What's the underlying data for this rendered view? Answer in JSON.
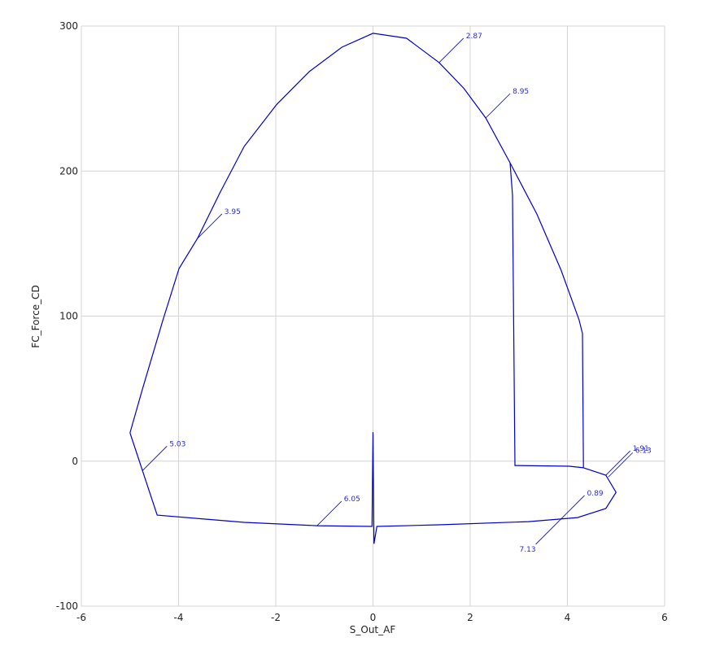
{
  "chart_data": {
    "type": "line",
    "x_label": "S_Out_AF",
    "y_label": "FC_Force_CD",
    "xlim": [
      -6,
      6
    ],
    "ylim": [
      -100,
      300
    ],
    "xticks": [
      -6,
      -4,
      -2,
      0,
      2,
      4,
      6
    ],
    "yticks": [
      -100,
      0,
      100,
      200,
      300
    ],
    "grid": true,
    "series": [
      {
        "color": "#0000c8",
        "x": [
          -5.0,
          -4.74,
          -4.33,
          -3.99,
          -3.61,
          -3.15,
          -2.65,
          -1.98,
          -1.31,
          -0.64,
          0.0,
          0.69,
          1.36,
          1.87,
          2.32,
          2.82,
          3.37,
          3.87,
          4.24,
          4.31,
          4.33,
          4.79,
          5.0,
          4.79,
          4.21,
          3.2,
          1.36,
          0.08,
          0.02,
          0.0,
          -0.02,
          -1.15,
          -2.65,
          -4.44,
          -5.0
        ],
        "y": [
          19.5,
          50,
          96.4,
          132.8,
          153.6,
          185,
          217,
          246,
          268.6,
          285.4,
          295,
          291.6,
          274.8,
          257,
          236.6,
          205.7,
          170.4,
          131.7,
          97.5,
          88,
          -4.6,
          -9.7,
          -21.5,
          -32.7,
          -38.9,
          -41.7,
          -43.9,
          -45,
          -57,
          20,
          -45,
          -44.5,
          -42.2,
          -37.2,
          19.5
        ]
      },
      {
        "color": "#0000c8",
        "x": [
          2.82,
          2.87,
          2.92,
          4.04,
          4.33
        ],
        "y": [
          205.7,
          183.3,
          -3,
          -3.5,
          -4.6
        ]
      }
    ],
    "annotations": [
      {
        "text": "2.87",
        "x": 1.36,
        "y": 274.8
      },
      {
        "text": "8.95",
        "x": 2.32,
        "y": 236.6
      },
      {
        "text": "3.95",
        "x": -3.61,
        "y": 153.6
      },
      {
        "text": "5.03",
        "x": -4.74,
        "y": -6.5
      },
      {
        "text": "6.05",
        "x": -1.15,
        "y": -44.5
      },
      {
        "text": "0.89",
        "x": 3.85,
        "y": -40.5
      },
      {
        "text": "7.13",
        "x": 3.85,
        "y": -40.5
      },
      {
        "text": "1.91",
        "x": 4.79,
        "y": -9.7
      },
      {
        "text": "6.13",
        "x": 4.84,
        "y": -11
      }
    ]
  }
}
